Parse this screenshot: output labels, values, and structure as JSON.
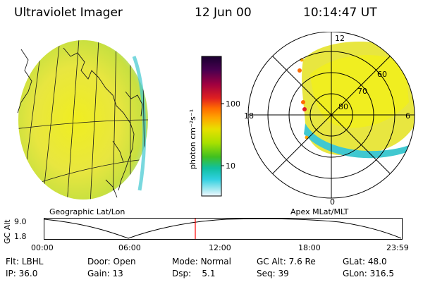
{
  "header": {
    "title": "Ultraviolet Imager",
    "date": "12 Jun 00",
    "time": "10:14:47 UT"
  },
  "left_panel": {
    "caption": "Geographic Lat/Lon"
  },
  "right_panel": {
    "caption": "Apex MLat/MLT",
    "mlt_labels": {
      "top": "12",
      "left": "18",
      "right": "6",
      "bottom": "0"
    },
    "lat_labels": [
      "60",
      "70",
      "80"
    ]
  },
  "colorbar": {
    "unit": "photon cm⁻²s⁻¹",
    "ticks": [
      "100",
      "10"
    ],
    "colors": [
      "#1a0030",
      "#4a0050",
      "#a00040",
      "#e02020",
      "#ff6a00",
      "#ffa500",
      "#e8e000",
      "#a8e000",
      "#40c020",
      "#10c0a0",
      "#30d0e0",
      "#a0e8f0",
      "#f0f8ff"
    ]
  },
  "altitude_chart": {
    "ylabel": "GC Alt",
    "yticks": [
      "9.0",
      "1.8"
    ],
    "xticks": [
      "00:00",
      "06:00",
      "12:00",
      "18:00",
      "23:59"
    ],
    "marker_color": "#ff0000"
  },
  "status": {
    "row1": [
      {
        "label": "Flt:",
        "value": "LBHL"
      },
      {
        "label": "Door:",
        "value": "Open"
      },
      {
        "label": "Mode:",
        "value": "Normal"
      },
      {
        "label": "GC Alt:",
        "value": "7.6 Re"
      },
      {
        "label": "GLat:",
        "value": "48.0"
      }
    ],
    "row2": [
      {
        "label": "IP:",
        "value": "36.0"
      },
      {
        "label": "Gain:",
        "value": "13"
      },
      {
        "label": "Dsp:",
        "value": "5.1"
      },
      {
        "label": "Seq:",
        "value": "39"
      },
      {
        "label": "GLon:",
        "value": "316.5"
      }
    ]
  }
}
